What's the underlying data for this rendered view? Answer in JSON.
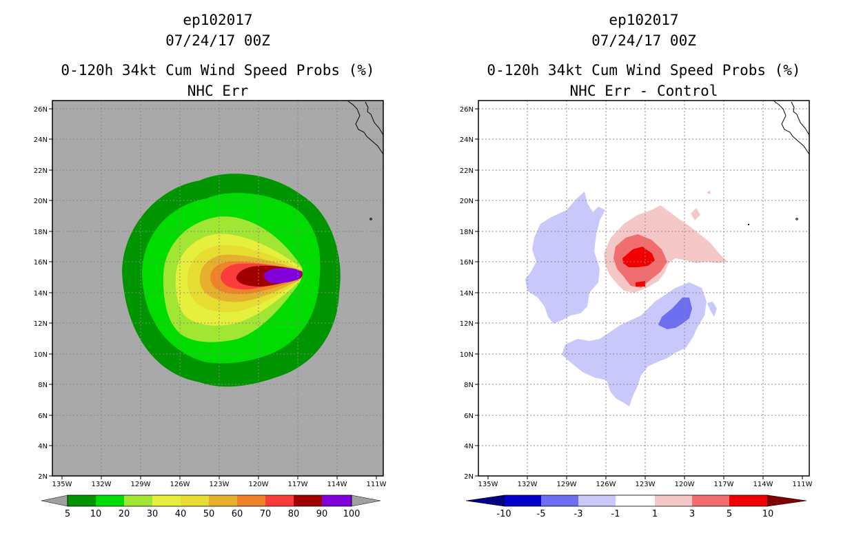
{
  "left": {
    "storm_id": "ep102017",
    "datetime": "07/24/17 00Z",
    "product": "0-120h 34kt Cum Wind Speed Probs (%)",
    "subtitle": "NHC Err",
    "colorbar": {
      "labels": [
        "5",
        "10",
        "20",
        "30",
        "40",
        "50",
        "60",
        "70",
        "80",
        "90",
        "100"
      ],
      "colors": [
        "#009400",
        "#00dc00",
        "#a0e632",
        "#e6f03c",
        "#e6dc32",
        "#e6af2d",
        "#f08228",
        "#fa3c3c",
        "#a00000",
        "#8200dc"
      ]
    }
  },
  "right": {
    "storm_id": "ep102017",
    "datetime": "07/24/17 00Z",
    "product": "0-120h 34kt Cum Wind Speed Probs (%)",
    "subtitle": "NHC Err - Control",
    "colorbar": {
      "labels": [
        "-10",
        "-5",
        "-3",
        "-1",
        "1",
        "3",
        "5",
        "10"
      ],
      "colors": [
        "#0000c8",
        "#6e6ef0",
        "#c8c8fa",
        "#ffffff",
        "#f5c8c8",
        "#f06e6e",
        "#f00000"
      ]
    }
  },
  "axes": {
    "lat_labels": [
      "26N",
      "24N",
      "22N",
      "20N",
      "18N",
      "16N",
      "14N",
      "12N",
      "10N",
      "8N",
      "6N",
      "4N",
      "2N"
    ],
    "lon_labels": [
      "135W",
      "132W",
      "129W",
      "126W",
      "123W",
      "120W",
      "117W",
      "114W",
      "111W"
    ]
  },
  "colors": {
    "land_gray": "#a9a9a9",
    "lowest_arrow": "#a0a0a0",
    "highest_arrow_right": "#800000",
    "lowest_arrow_right": "#000080"
  }
}
